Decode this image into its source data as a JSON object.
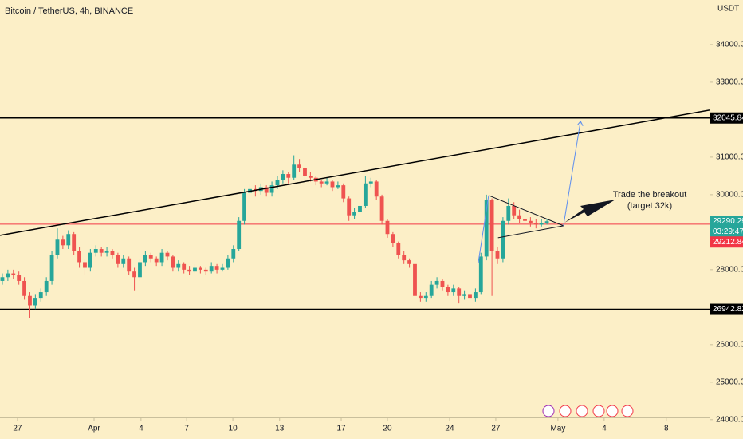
{
  "chart_data": {
    "type": "candlestick",
    "title": "Bitcoin / TetherUS, 4h, BINANCE",
    "currency": "USDT",
    "countdown": "03:29:47",
    "up_color": "#26a69a",
    "down_color": "#ef5350",
    "xlim": [
      -0.43,
      128.55
    ],
    "xticks": [
      {
        "value": 2.75,
        "label": "27"
      },
      {
        "value": 16.67,
        "label": "Apr"
      },
      {
        "value": 25.2,
        "label": "4"
      },
      {
        "value": 33.5,
        "label": "7"
      },
      {
        "value": 41.9,
        "label": "10"
      },
      {
        "value": 50.4,
        "label": "13"
      },
      {
        "value": 61.6,
        "label": "17"
      },
      {
        "value": 70,
        "label": "20"
      },
      {
        "value": 81.3,
        "label": "24"
      },
      {
        "value": 89.7,
        "label": "27"
      },
      {
        "value": 101,
        "label": "May"
      },
      {
        "value": 109.4,
        "label": "4"
      },
      {
        "value": 120.7,
        "label": "8"
      }
    ],
    "ylim": [
      24060,
      35190
    ],
    "yticks": [
      {
        "value": 24000,
        "label": "24000.00"
      },
      {
        "value": 25000,
        "label": "25000.00"
      },
      {
        "value": 26000,
        "label": "26000.00"
      },
      {
        "value": 28000,
        "label": "28000.00"
      },
      {
        "value": 30000,
        "label": "30000.00"
      },
      {
        "value": 31000,
        "label": "31000.00"
      },
      {
        "value": 33000,
        "label": "33000.00"
      },
      {
        "value": 34000,
        "label": "34000.00"
      }
    ],
    "candles": [
      [
        27700,
        27900,
        27600,
        27800
      ],
      [
        27800,
        28000,
        27700,
        27900
      ],
      [
        27900,
        28000,
        27750,
        27850
      ],
      [
        27850,
        27950,
        27600,
        27700
      ],
      [
        27700,
        27800,
        27200,
        27300
      ],
      [
        27300,
        27400,
        26700,
        27050
      ],
      [
        27050,
        27350,
        26950,
        27250
      ],
      [
        27250,
        27500,
        27150,
        27400
      ],
      [
        27400,
        27800,
        27300,
        27700
      ],
      [
        27700,
        28500,
        27600,
        28400
      ],
      [
        28400,
        29100,
        28300,
        28800
      ],
      [
        28800,
        28900,
        28550,
        28650
      ],
      [
        28650,
        29050,
        28550,
        28950
      ],
      [
        28950,
        29000,
        28400,
        28500
      ],
      [
        28500,
        28600,
        28050,
        28200
      ],
      [
        28200,
        28300,
        27850,
        28050
      ],
      [
        28050,
        28550,
        27950,
        28450
      ],
      [
        28450,
        28650,
        28350,
        28550
      ],
      [
        28550,
        28600,
        28350,
        28450
      ],
      [
        28450,
        28600,
        28350,
        28500
      ],
      [
        28500,
        28550,
        28300,
        28400
      ],
      [
        28400,
        28450,
        28050,
        28150
      ],
      [
        28150,
        28400,
        28050,
        28300
      ],
      [
        28300,
        28350,
        27850,
        27950
      ],
      [
        27950,
        28050,
        27450,
        27800
      ],
      [
        27800,
        28300,
        27700,
        28200
      ],
      [
        28200,
        28500,
        28100,
        28400
      ],
      [
        28400,
        28450,
        28200,
        28300
      ],
      [
        28300,
        28350,
        28100,
        28200
      ],
      [
        28200,
        28550,
        28100,
        28450
      ],
      [
        28450,
        28500,
        28250,
        28350
      ],
      [
        28350,
        28400,
        27950,
        28050
      ],
      [
        28050,
        28250,
        27950,
        28150
      ],
      [
        28150,
        28200,
        27900,
        28000
      ],
      [
        28000,
        28100,
        27850,
        27950
      ],
      [
        27950,
        28150,
        27900,
        28050
      ],
      [
        28050,
        28100,
        27900,
        28000
      ],
      [
        28000,
        28050,
        27850,
        27950
      ],
      [
        27950,
        28200,
        27900,
        28100
      ],
      [
        28100,
        28150,
        27900,
        28000
      ],
      [
        28000,
        28150,
        27950,
        28050
      ],
      [
        28050,
        28400,
        28000,
        28300
      ],
      [
        28300,
        28650,
        28200,
        28550
      ],
      [
        28550,
        29400,
        28500,
        29300
      ],
      [
        29300,
        30150,
        29200,
        30050
      ],
      [
        30050,
        30300,
        29950,
        30150
      ],
      [
        30150,
        30250,
        29950,
        30100
      ],
      [
        30100,
        30300,
        30000,
        30200
      ],
      [
        30200,
        30250,
        29950,
        30050
      ],
      [
        30050,
        30350,
        29950,
        30250
      ],
      [
        30250,
        30500,
        30150,
        30400
      ],
      [
        30400,
        30650,
        30300,
        30550
      ],
      [
        30550,
        30600,
        30300,
        30450
      ],
      [
        30450,
        31050,
        30400,
        30800
      ],
      [
        30800,
        30950,
        30600,
        30700
      ],
      [
        30700,
        30750,
        30400,
        30500
      ],
      [
        30500,
        30600,
        30350,
        30450
      ],
      [
        30450,
        30500,
        30250,
        30350
      ],
      [
        30350,
        30400,
        30200,
        30300
      ],
      [
        30300,
        30450,
        30250,
        30350
      ],
      [
        30350,
        30400,
        30100,
        30200
      ],
      [
        30200,
        30350,
        30150,
        30250
      ],
      [
        30250,
        30300,
        29800,
        29900
      ],
      [
        29900,
        29950,
        29300,
        29450
      ],
      [
        29450,
        29650,
        29350,
        29550
      ],
      [
        29550,
        29800,
        29450,
        29700
      ],
      [
        29700,
        30500,
        29650,
        30300
      ],
      [
        30300,
        30450,
        30200,
        30350
      ],
      [
        30350,
        30400,
        29850,
        29950
      ],
      [
        29950,
        30000,
        29200,
        29300
      ],
      [
        29300,
        29350,
        28850,
        28950
      ],
      [
        28950,
        29000,
        28600,
        28700
      ],
      [
        28700,
        28750,
        28300,
        28400
      ],
      [
        28400,
        28500,
        28150,
        28250
      ],
      [
        28250,
        28300,
        28050,
        28150
      ],
      [
        28150,
        28200,
        27150,
        27300
      ],
      [
        27300,
        27400,
        27150,
        27250
      ],
      [
        27250,
        27400,
        27150,
        27300
      ],
      [
        27300,
        27700,
        27250,
        27600
      ],
      [
        27600,
        27800,
        27500,
        27700
      ],
      [
        27700,
        27750,
        27450,
        27550
      ],
      [
        27550,
        27600,
        27300,
        27400
      ],
      [
        27400,
        27600,
        27300,
        27500
      ],
      [
        27500,
        27550,
        27100,
        27300
      ],
      [
        27300,
        27450,
        27200,
        27350
      ],
      [
        27350,
        27400,
        27150,
        27250
      ],
      [
        27250,
        27500,
        27150,
        27400
      ],
      [
        27400,
        28450,
        27350,
        28350
      ],
      [
        28350,
        30000,
        28250,
        29850
      ],
      [
        29850,
        29900,
        27300,
        28500
      ],
      [
        28500,
        28600,
        28150,
        28300
      ],
      [
        28300,
        29400,
        28200,
        29300
      ],
      [
        29300,
        29900,
        29200,
        29700
      ],
      [
        29700,
        29800,
        29350,
        29450
      ],
      [
        29450,
        29600,
        29250,
        29350
      ],
      [
        29350,
        29450,
        29150,
        29300
      ],
      [
        29300,
        29400,
        29150,
        29250
      ],
      [
        29250,
        29350,
        29100,
        29200
      ],
      [
        29200,
        29350,
        29150,
        29250
      ],
      [
        29250,
        29350,
        29200,
        29290.29
      ]
    ],
    "levels": [
      {
        "value": 32045.84,
        "color": "#000000"
      },
      {
        "value": 26942.82,
        "color": "#000000"
      },
      {
        "value": 29212.84,
        "color": "#f23645"
      }
    ],
    "trendline": {
      "color": "#000000",
      "points": [
        [
          -0.43,
          28915
        ],
        [
          128.55,
          32255
        ]
      ]
    },
    "triangle": {
      "color": "#131722",
      "points": [
        [
          88.4,
          29980
        ],
        [
          102,
          29170
        ],
        [
          90.1,
          28850
        ]
      ]
    },
    "projection": {
      "color": "#5b8def",
      "points": [
        [
          86.5,
          28170
        ],
        [
          88.4,
          29980
        ]
      ],
      "target": [
        [
          102,
          29170
        ],
        [
          105.1,
          31960
        ]
      ]
    },
    "annotation": [
      "Trade the breakout",
      "(target 32k)"
    ]
  }
}
